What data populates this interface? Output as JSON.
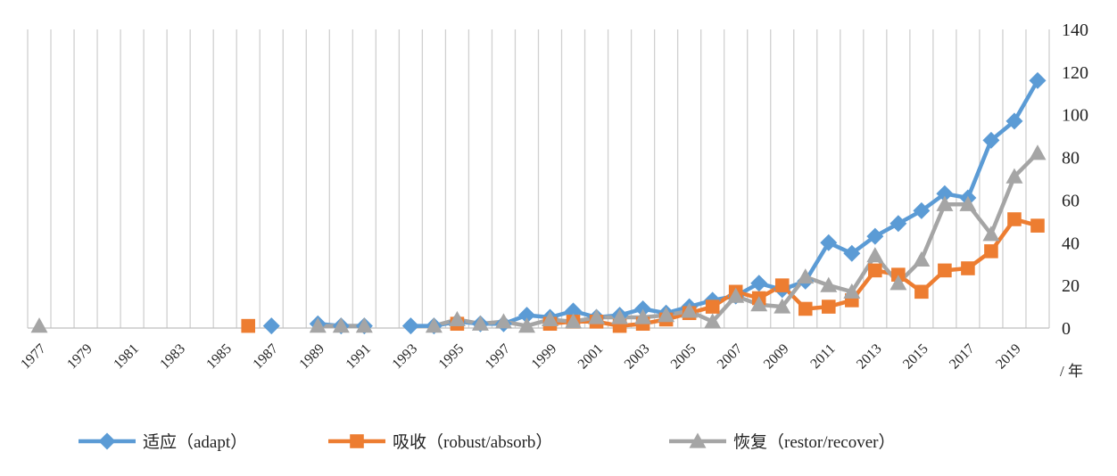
{
  "chart_data": {
    "type": "line",
    "title": "",
    "xlabel": "/ 年",
    "ylabel": "",
    "ylim": [
      0,
      140
    ],
    "yticks": [
      0,
      20,
      40,
      60,
      80,
      100,
      120,
      140
    ],
    "grid": "vertical",
    "legend_position": "bottom",
    "x": [
      1977,
      1978,
      1979,
      1980,
      1981,
      1982,
      1983,
      1984,
      1985,
      1986,
      1987,
      1988,
      1989,
      1990,
      1991,
      1992,
      1993,
      1994,
      1995,
      1996,
      1997,
      1998,
      1999,
      2000,
      2001,
      2002,
      2003,
      2004,
      2005,
      2006,
      2007,
      2008,
      2009,
      2010,
      2011,
      2012,
      2013,
      2014,
      2015,
      2016,
      2017,
      2018,
      2019,
      2020
    ],
    "xticklabels": [
      "1977",
      "1979",
      "1981",
      "1983",
      "1985",
      "1987",
      "1989",
      "1991",
      "1993",
      "1995",
      "1997",
      "1999",
      "2001",
      "2003",
      "2005",
      "2007",
      "2009",
      "2011",
      "2013",
      "2015",
      "2017",
      "2019"
    ],
    "series": [
      {
        "name": "适应（adapt）",
        "color": "#5b9bd5",
        "marker": "diamond",
        "values": [
          null,
          null,
          null,
          null,
          null,
          null,
          null,
          null,
          null,
          null,
          1,
          null,
          2,
          1,
          1,
          null,
          1,
          1,
          3,
          2,
          2,
          6,
          5,
          8,
          5,
          6,
          9,
          7,
          10,
          13,
          15,
          21,
          18,
          22,
          40,
          35,
          43,
          49,
          55,
          63,
          61,
          88,
          97,
          116
        ]
      },
      {
        "name": "吸收（robust/absorb）",
        "color": "#ed7d31",
        "marker": "square",
        "values": [
          null,
          null,
          null,
          null,
          null,
          null,
          null,
          null,
          null,
          1,
          null,
          null,
          null,
          null,
          null,
          null,
          null,
          null,
          2,
          null,
          null,
          null,
          2,
          3,
          3,
          1,
          2,
          4,
          7,
          10,
          17,
          14,
          20,
          9,
          10,
          13,
          27,
          25,
          17,
          27,
          28,
          36,
          51,
          48
        ]
      },
      {
        "name": "恢复（restor/recover）",
        "color": "#a5a5a5",
        "marker": "triangle",
        "values": [
          1,
          null,
          null,
          null,
          null,
          null,
          null,
          null,
          null,
          null,
          null,
          null,
          1,
          1,
          1,
          null,
          null,
          1,
          4,
          2,
          3,
          1,
          4,
          3,
          5,
          5,
          5,
          6,
          8,
          3,
          15,
          11,
          10,
          24,
          20,
          17,
          34,
          21,
          32,
          58,
          58,
          44,
          71,
          82
        ]
      }
    ]
  }
}
